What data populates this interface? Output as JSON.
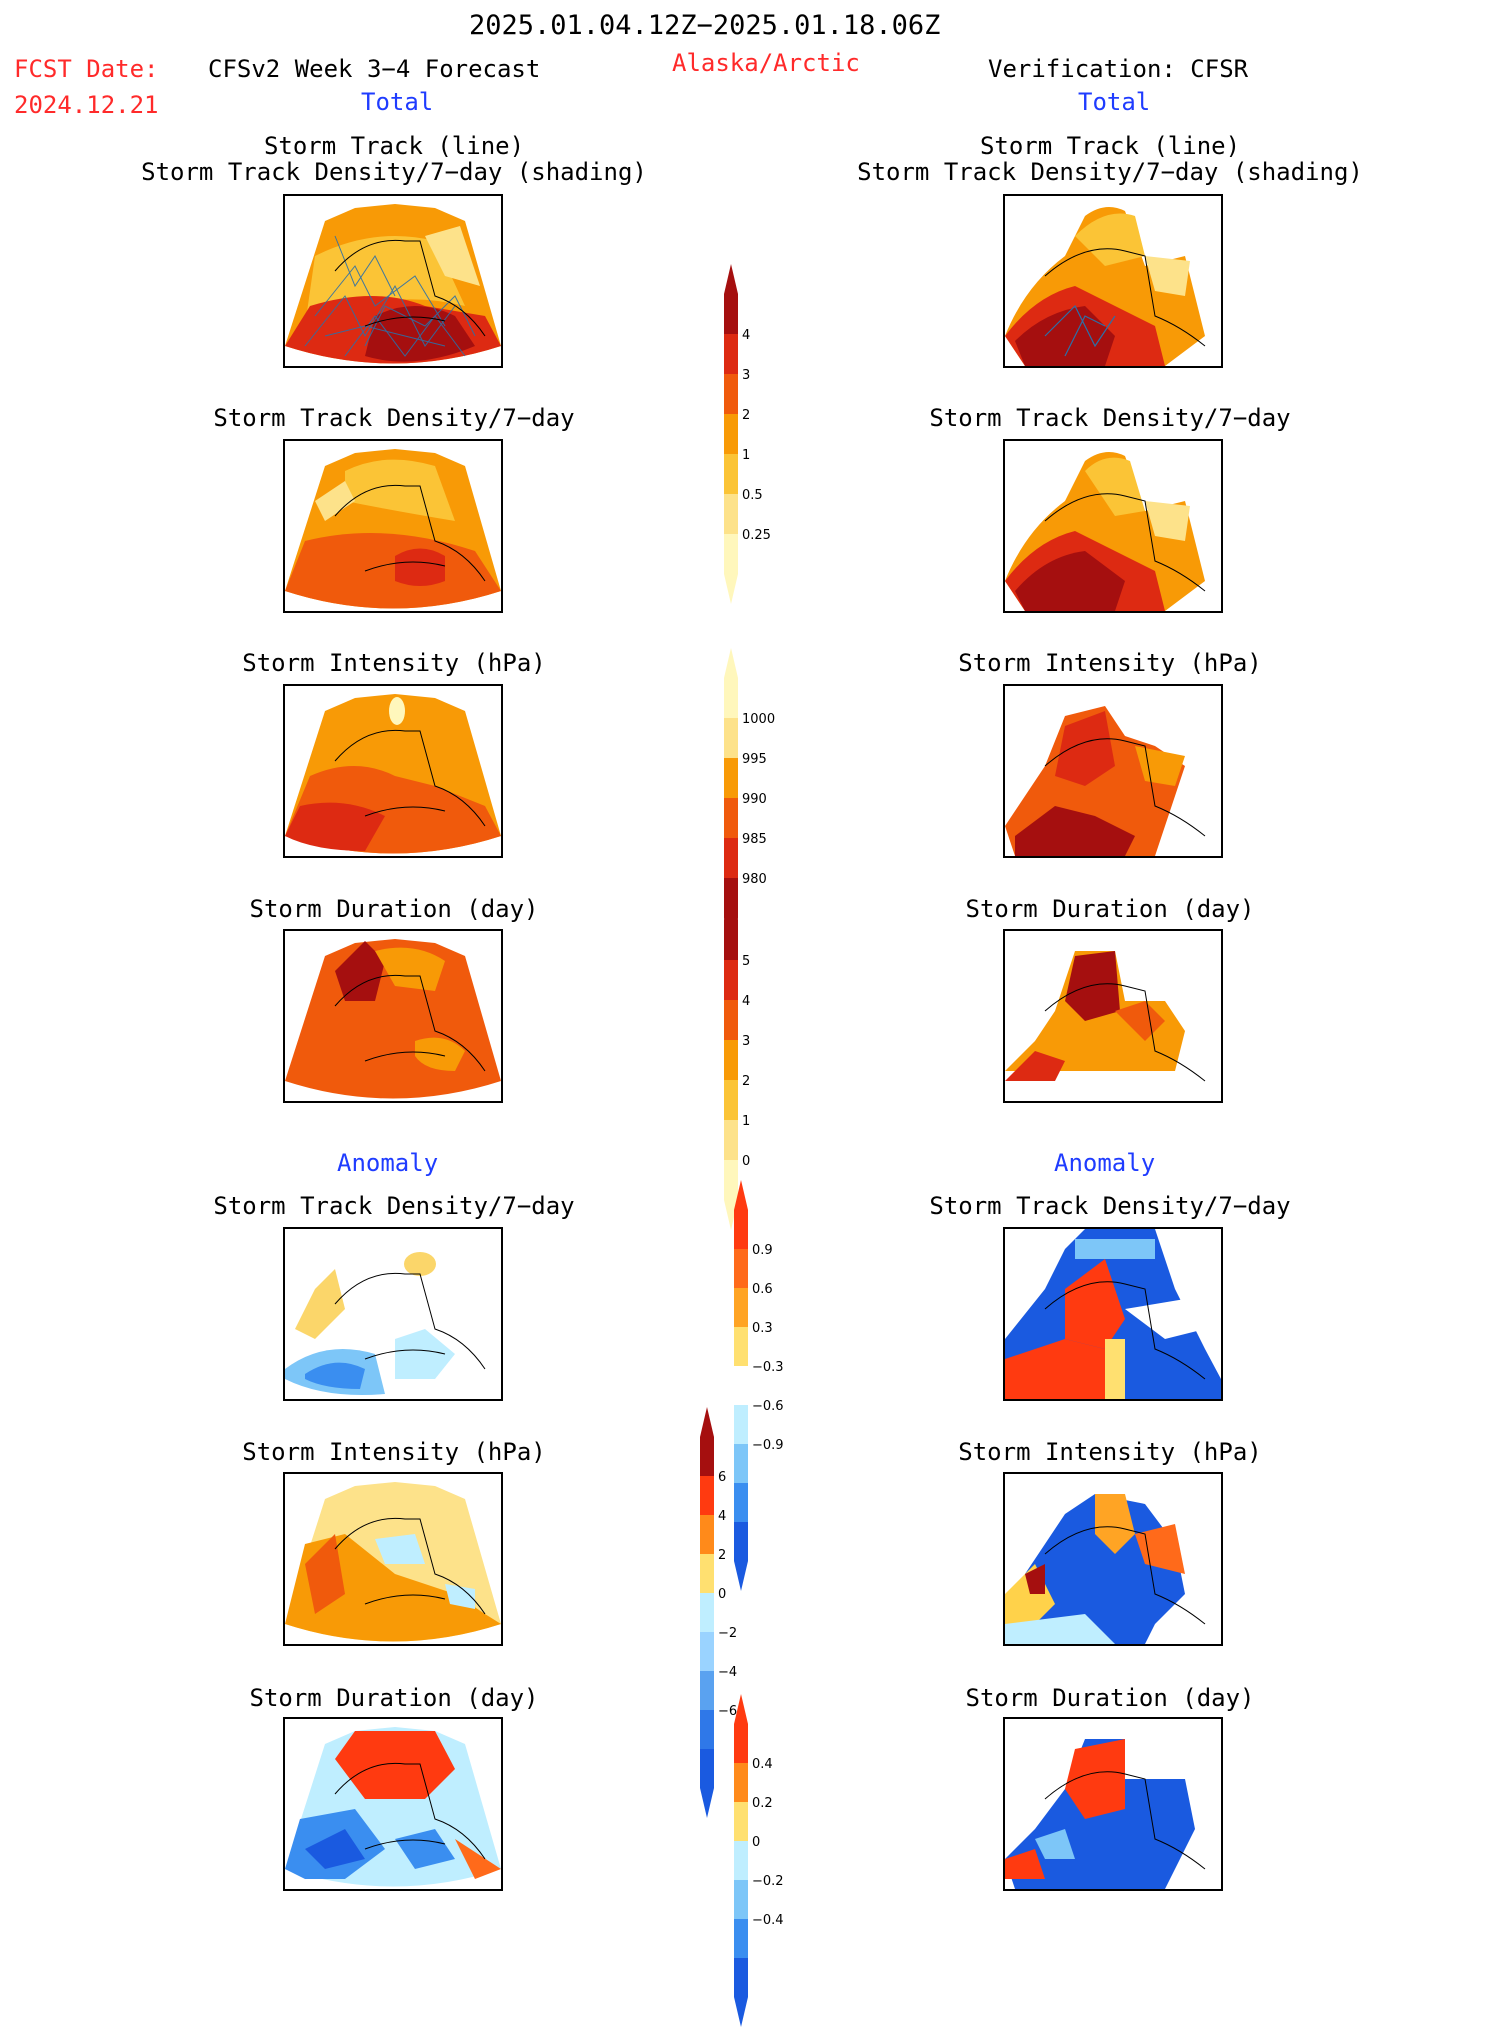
{
  "header": {
    "period": "2025.01.04.12Z−2025.01.18.06Z",
    "fcst_date_label": "FCST Date:",
    "fcst_date": "2024.12.21",
    "model_title": "CFSv2 Week 3−4 Forecast",
    "region": "Alaska/Arctic",
    "verification": "Verification: CFSR"
  },
  "sections": {
    "total": "Total",
    "anomaly": "Anomaly"
  },
  "panel_titles": {
    "track_line": "Storm Track (line)",
    "track_shading": "Storm Track Density/7−day (shading)",
    "density": "Storm Track Density/7−day",
    "intensity": "Storm Intensity (hPa)",
    "duration": "Storm Duration (day)"
  },
  "colorbars": {
    "density_total": {
      "labels": [
        "4",
        "3",
        "2",
        "1",
        "0.5",
        "0.25"
      ],
      "colors": [
        "#a50f0f",
        "#dd2a12",
        "#f05a0c",
        "#f89a06",
        "#fbc436",
        "#fde28a",
        "#fff7bc"
      ]
    },
    "intensity_total": {
      "labels": [
        "1000",
        "995",
        "990",
        "985",
        "980"
      ],
      "colors": [
        "#fff7bc",
        "#fde28a",
        "#f89a06",
        "#f05a0c",
        "#dd2a12",
        "#a50f0f"
      ]
    },
    "duration_total": {
      "labels": [
        "5",
        "4",
        "3",
        "2",
        "1",
        "0"
      ],
      "colors": [
        "#a50f0f",
        "#dd2a12",
        "#f05a0c",
        "#f89a06",
        "#fbc436",
        "#fde28a",
        "#fff7bc"
      ]
    },
    "density_anomaly": {
      "labels": [
        "0.9",
        "0.6",
        "0.3",
        "−0.3",
        "−0.6",
        "−0.9"
      ],
      "colors": [
        "#ff3a10",
        "#ff6a1a",
        "#ffa424",
        "#ffe070",
        "#ffffff",
        "#bfeeff",
        "#7dc6f8",
        "#3a8ef0",
        "#1a5ae0"
      ]
    },
    "intensity_anomaly": {
      "labels": [
        "6",
        "4",
        "2",
        "0",
        "−2",
        "−4",
        "−6"
      ],
      "colors": [
        "#a50f0f",
        "#ff3a10",
        "#ff8a1a",
        "#ffe070",
        "#bfeeff",
        "#9ad3ff",
        "#5aa2f0",
        "#2f78e8",
        "#1a5ae0"
      ]
    },
    "duration_anomaly": {
      "labels": [
        "0.4",
        "0.2",
        "0",
        "−0.2",
        "−0.4"
      ],
      "colors": [
        "#ff3a10",
        "#ff8a1a",
        "#ffe070",
        "#bfeeff",
        "#7dc6f8",
        "#3a8ef0",
        "#1a5ae0"
      ]
    }
  }
}
